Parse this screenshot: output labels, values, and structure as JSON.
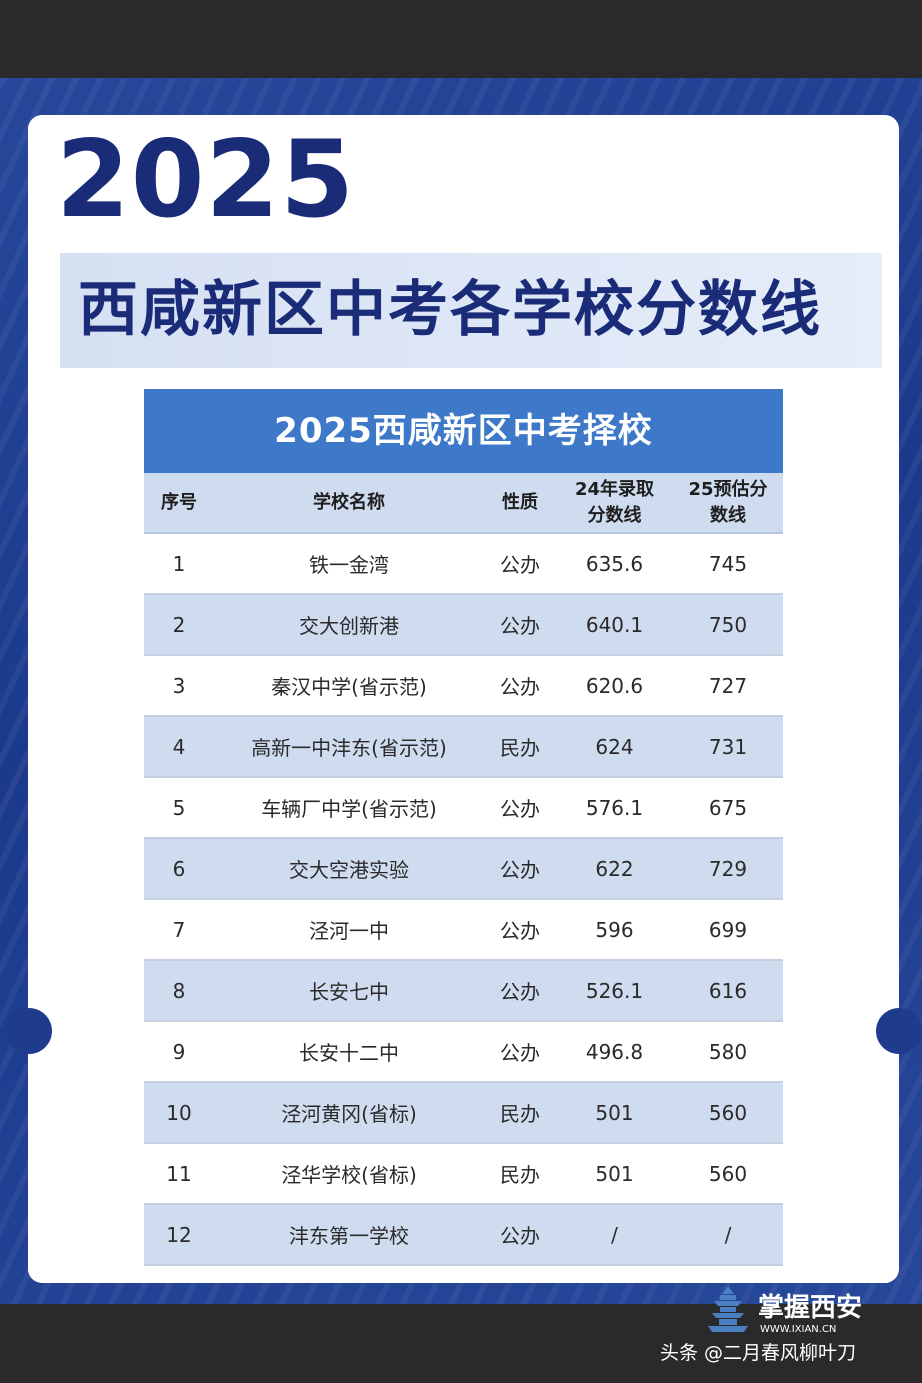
{
  "poster": {
    "year": "2025",
    "title": "西咸新区中考各学校分数线"
  },
  "table": {
    "title": "2025西咸新区中考择校",
    "headers": {
      "index": "序号",
      "name": "学校名称",
      "type": "性质",
      "score24_line1": "24年录取",
      "score24_line2": "分数线",
      "score25_line1": "25预估分",
      "score25_line2": "数线"
    },
    "rows": [
      {
        "index": "1",
        "name": "铁一金湾",
        "type": "公办",
        "score24": "635.6",
        "score25": "745"
      },
      {
        "index": "2",
        "name": "交大创新港",
        "type": "公办",
        "score24": "640.1",
        "score25": "750"
      },
      {
        "index": "3",
        "name": "秦汉中学(省示范)",
        "type": "公办",
        "score24": "620.6",
        "score25": "727"
      },
      {
        "index": "4",
        "name": "高新一中沣东(省示范)",
        "type": "民办",
        "score24": "624",
        "score25": "731"
      },
      {
        "index": "5",
        "name": "车辆厂中学(省示范)",
        "type": "公办",
        "score24": "576.1",
        "score25": "675"
      },
      {
        "index": "6",
        "name": "交大空港实验",
        "type": "公办",
        "score24": "622",
        "score25": "729"
      },
      {
        "index": "7",
        "name": "泾河一中",
        "type": "公办",
        "score24": "596",
        "score25": "699"
      },
      {
        "index": "8",
        "name": "长安七中",
        "type": "公办",
        "score24": "526.1",
        "score25": "616"
      },
      {
        "index": "9",
        "name": "长安十二中",
        "type": "公办",
        "score24": "496.8",
        "score25": "580"
      },
      {
        "index": "10",
        "name": "泾河黄冈(省标)",
        "type": "民办",
        "score24": "501",
        "score25": "560"
      },
      {
        "index": "11",
        "name": "泾华学校(省标)",
        "type": "民办",
        "score24": "501",
        "score25": "560"
      },
      {
        "index": "12",
        "name": "沣东第一学校",
        "type": "公办",
        "score24": "/",
        "score25": "/"
      }
    ]
  },
  "footer": {
    "logo_text": "掌握西安",
    "logo_url": "WWW.IXIAN.CN",
    "credit": "头条 @二月春风柳叶刀"
  },
  "colors": {
    "title_blue": "#1a2b78",
    "table_header_blue": "#3d78c9",
    "row_stripe": "#cfdcef",
    "background_blue": "#1f3b8d"
  }
}
